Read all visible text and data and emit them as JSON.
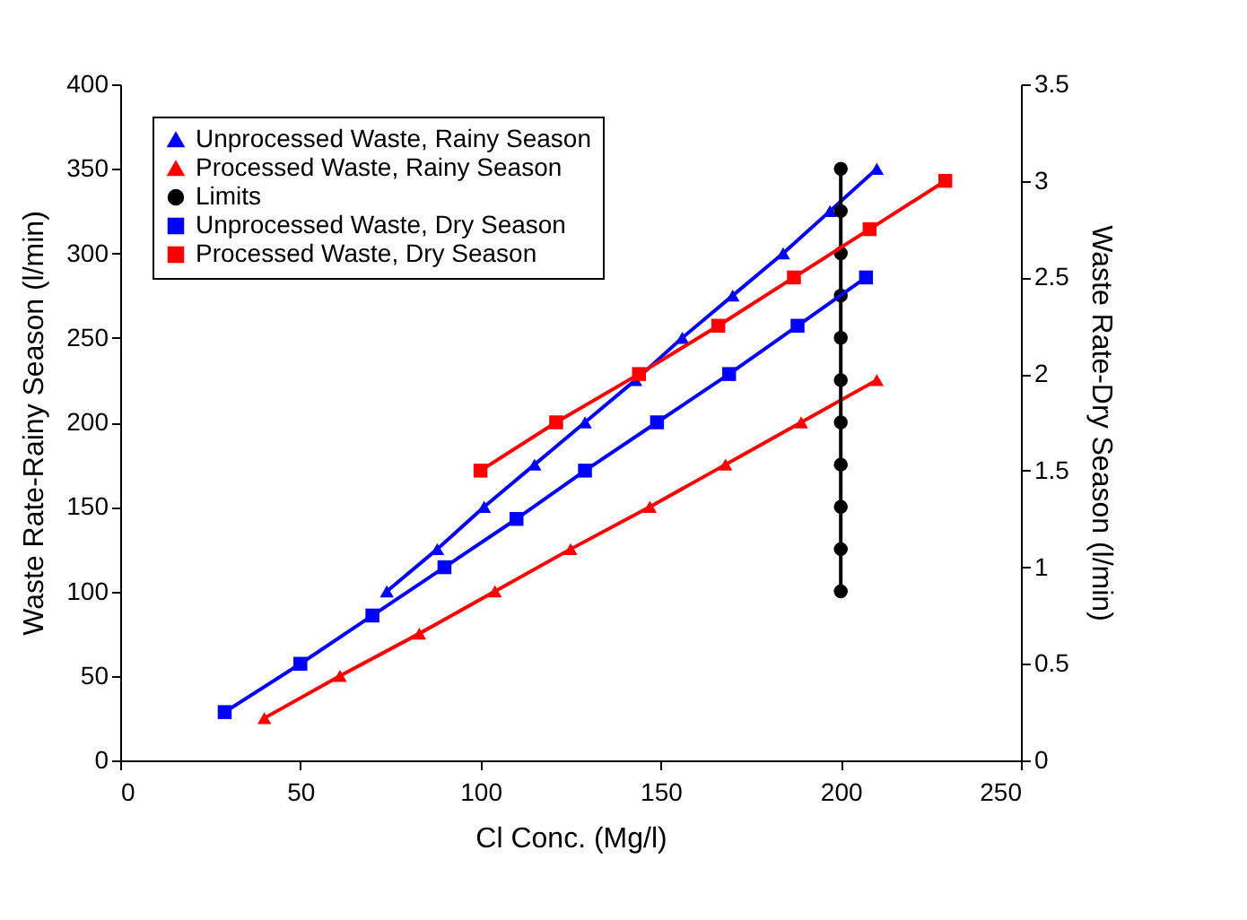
{
  "chart_data": {
    "type": "line",
    "xlabel": "Cl Conc. (Mg/l)",
    "ylabel": "Waste Rate-Rainy Season (l/min)",
    "y2label": "Waste Rate-Dry Season (l/min)",
    "xlim": [
      0,
      250
    ],
    "xticks": [
      0,
      50,
      100,
      150,
      200,
      250
    ],
    "ylim": [
      0,
      400
    ],
    "yticks": [
      0,
      50,
      100,
      150,
      200,
      250,
      300,
      350,
      400
    ],
    "y2lim": [
      0,
      3.5
    ],
    "y2ticks": [
      0,
      0.5,
      1,
      1.5,
      2,
      2.5,
      3,
      3.5
    ],
    "grid": false,
    "legend": "top left",
    "line_style": "solid",
    "series": [
      {
        "name": "Unprocessed Waste, Rainy Season",
        "color": "#0000ff",
        "marker": "triangle",
        "x": [
          74,
          88,
          101,
          115,
          129,
          143,
          156,
          170,
          184,
          197,
          210
        ],
        "values": [
          100,
          125,
          150,
          175,
          200,
          225,
          250,
          275,
          300,
          325,
          350
        ]
      },
      {
        "name": "Processed Waste, Rainy Season",
        "color": "#ff0000",
        "marker": "triangle",
        "x": [
          40,
          61,
          83,
          104,
          125,
          147,
          168,
          189,
          210
        ],
        "values": [
          25,
          50,
          75,
          100,
          125,
          150,
          175,
          200,
          225
        ]
      },
      {
        "name": "Limits",
        "color": "#000000",
        "marker": "circle",
        "x": [
          200,
          200,
          200,
          200,
          200,
          200,
          200,
          200,
          200,
          200,
          200
        ],
        "values": [
          100,
          125,
          150,
          175,
          200,
          225,
          250,
          275,
          300,
          325,
          350
        ]
      },
      {
        "name": "Unprocessed Waste, Dry Season",
        "color": "#0000ff",
        "marker": "square",
        "axis": "y2",
        "x": [
          29,
          50,
          70,
          90,
          110,
          129,
          149,
          169,
          188,
          207
        ],
        "values": [
          0.25,
          0.5,
          0.75,
          1,
          1.25,
          1.5,
          1.75,
          2,
          2.25,
          2.5
        ]
      },
      {
        "name": "Processed Waste, Dry Season",
        "color": "#ff0000",
        "marker": "square",
        "axis": "y2",
        "x": [
          100,
          121,
          144,
          166,
          187,
          208,
          229
        ],
        "values": [
          1.5,
          1.75,
          2,
          2.25,
          2.5,
          2.75,
          3
        ]
      }
    ]
  }
}
